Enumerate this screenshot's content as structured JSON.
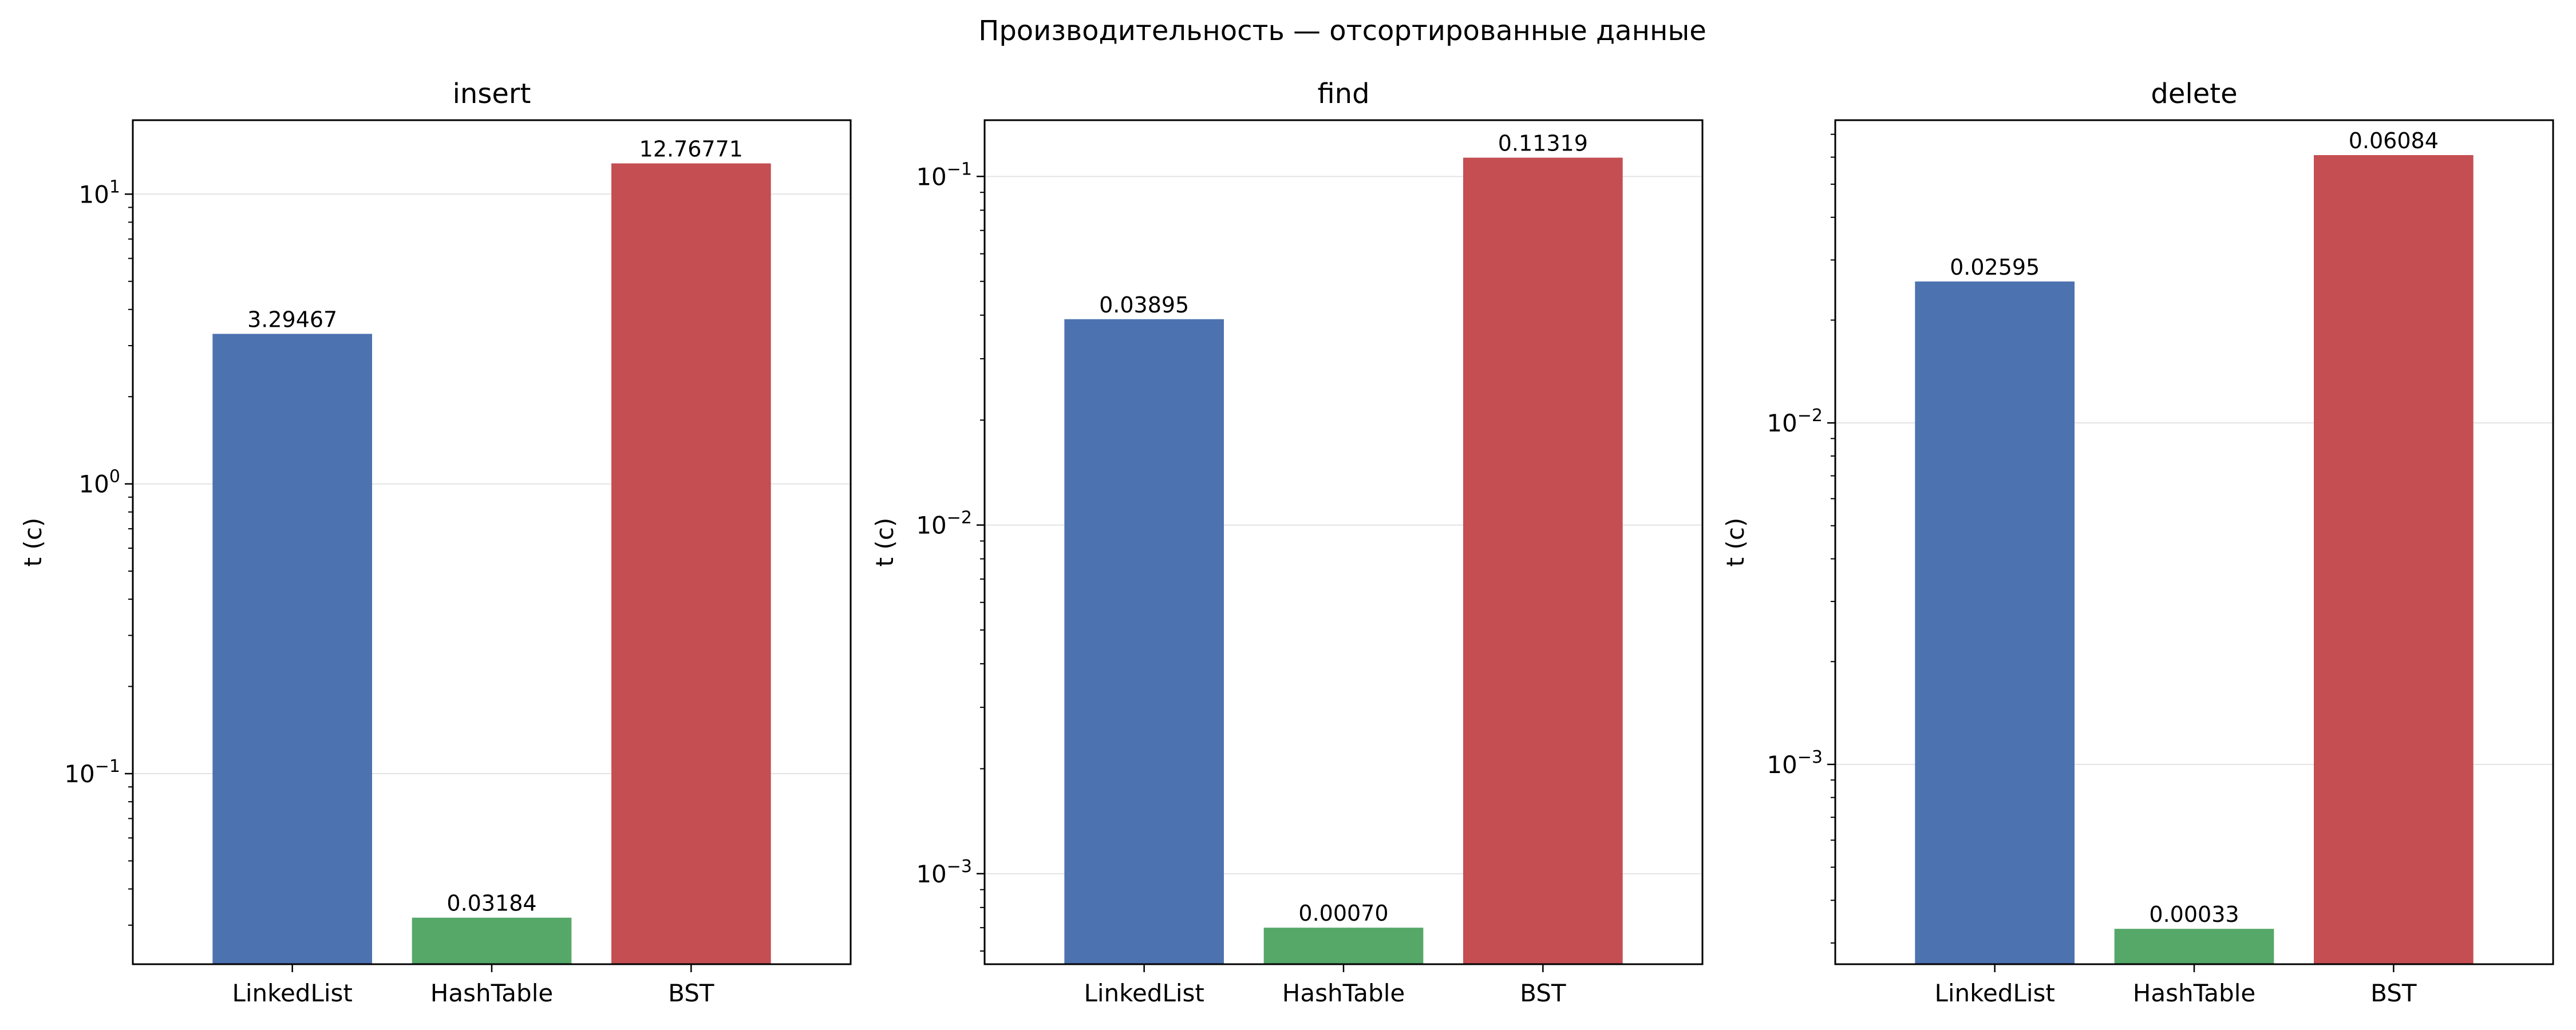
{
  "figure": {
    "title": "Производительность — отсортированные данные"
  },
  "chart_data": [
    {
      "type": "bar",
      "title": "insert",
      "ylabel": "t (c)",
      "yscale": "log",
      "ylim": [
        0.022,
        18
      ],
      "grid": "y",
      "categories": [
        "LinkedList",
        "HashTable",
        "BST"
      ],
      "values": [
        3.29467,
        0.03184,
        12.76771
      ],
      "value_labels": [
        "3.29467",
        "0.03184",
        "12.76771"
      ],
      "colors": [
        "#4c72b0",
        "#55a868",
        "#c44e52"
      ],
      "ticks": [
        {
          "value": 0.1,
          "mantissa": "10",
          "exp": "−1"
        },
        {
          "value": 1,
          "mantissa": "10",
          "exp": "0"
        },
        {
          "value": 10,
          "mantissa": "10",
          "exp": "1"
        }
      ]
    },
    {
      "type": "bar",
      "title": "find",
      "ylabel": "t (c)",
      "yscale": "log",
      "ylim": [
        0.00055,
        0.145
      ],
      "grid": "y",
      "categories": [
        "LinkedList",
        "HashTable",
        "BST"
      ],
      "values": [
        0.03895,
        0.0007,
        0.11319
      ],
      "value_labels": [
        "0.03895",
        "0.00070",
        "0.11319"
      ],
      "colors": [
        "#4c72b0",
        "#55a868",
        "#c44e52"
      ],
      "ticks": [
        {
          "value": 0.001,
          "mantissa": "10",
          "exp": "−3"
        },
        {
          "value": 0.01,
          "mantissa": "10",
          "exp": "−2"
        },
        {
          "value": 0.1,
          "mantissa": "10",
          "exp": "−1"
        }
      ]
    },
    {
      "type": "bar",
      "title": "delete",
      "ylabel": "t (c)",
      "yscale": "log",
      "ylim": [
        0.00026,
        0.077
      ],
      "grid": "y",
      "categories": [
        "LinkedList",
        "HashTable",
        "BST"
      ],
      "values": [
        0.02595,
        0.00033,
        0.06084
      ],
      "value_labels": [
        "0.02595",
        "0.00033",
        "0.06084"
      ],
      "colors": [
        "#4c72b0",
        "#55a868",
        "#c44e52"
      ],
      "ticks": [
        {
          "value": 0.001,
          "mantissa": "10",
          "exp": "−3"
        },
        {
          "value": 0.01,
          "mantissa": "10",
          "exp": "−2"
        }
      ]
    }
  ]
}
